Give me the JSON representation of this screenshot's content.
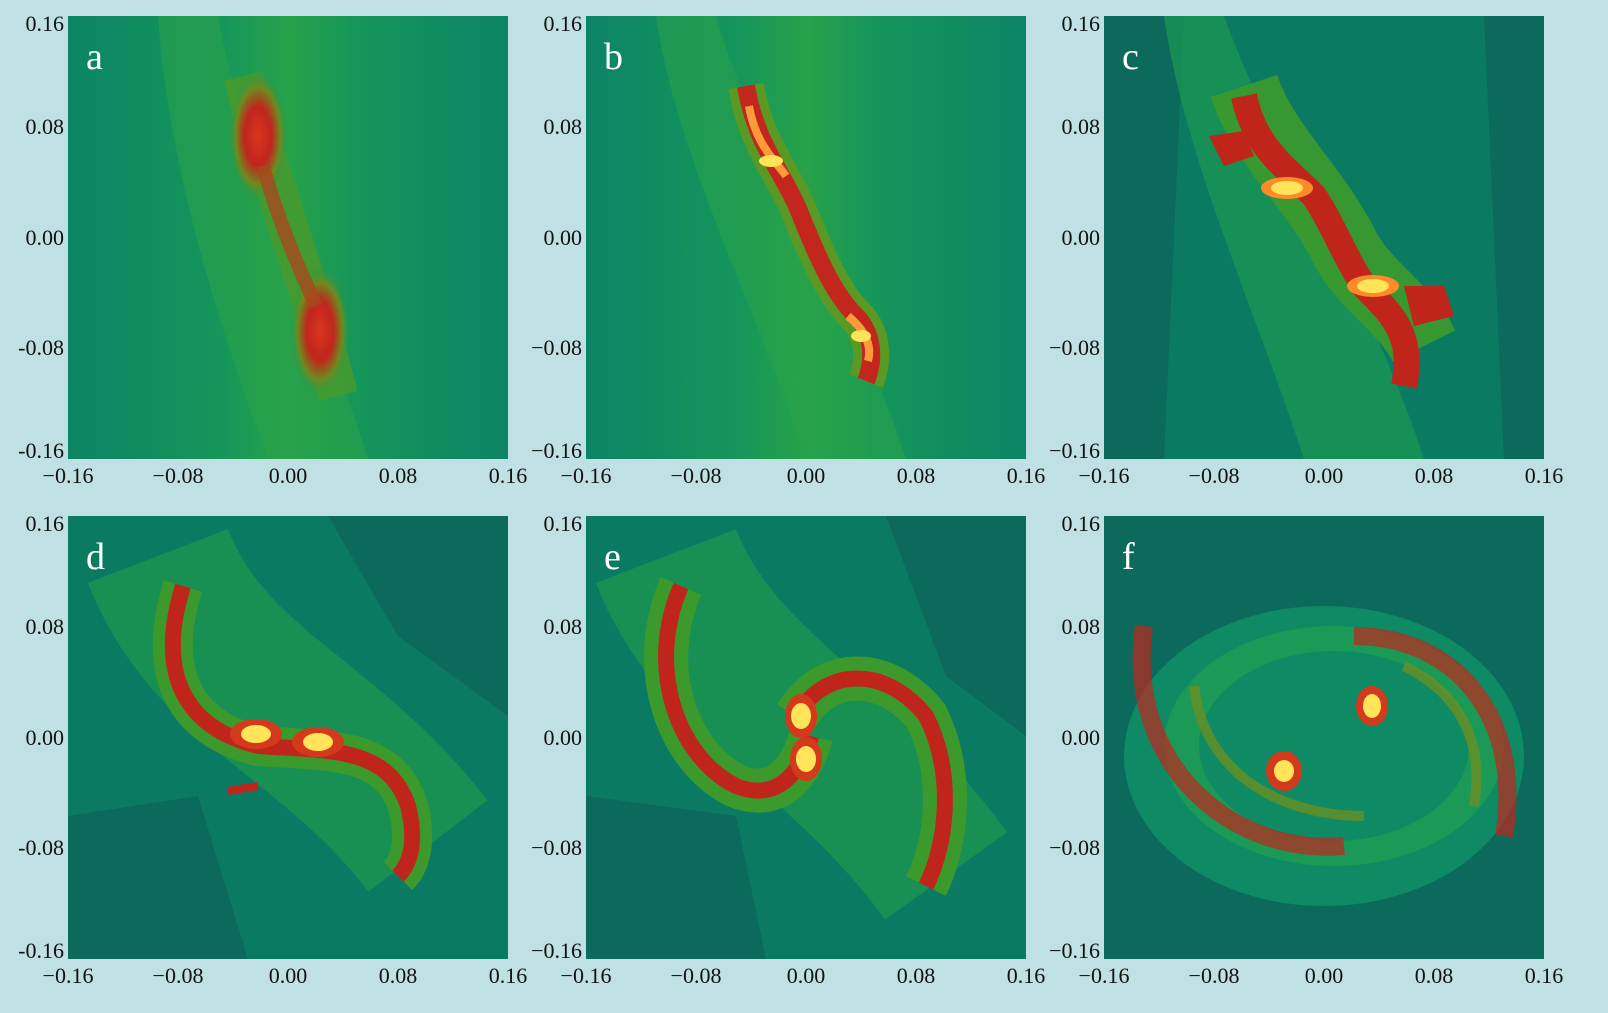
{
  "figure": {
    "axis_ticks": [
      "−0.16",
      "−0.08",
      "0.00",
      "0.08",
      "0.16"
    ],
    "y_ticks_top_to_bottom": [
      "0.16",
      "0.08",
      "0.00",
      "-0.08",
      "-0.16"
    ],
    "y_ticks_top_to_bottom_alt": [
      "0.16",
      "0.08",
      "0.00",
      "−0.08",
      "−0.16"
    ],
    "panels": [
      {
        "label": "a",
        "stage": "elongated bar with two clumps"
      },
      {
        "label": "b",
        "stage": "single thin S-shaped filament"
      },
      {
        "label": "c",
        "stage": "fragmented filament with two cores"
      },
      {
        "label": "d",
        "stage": "two cores with curved spiral arms"
      },
      {
        "label": "e",
        "stage": "two adjacent cores with spiral arms"
      },
      {
        "label": "f",
        "stage": "separated cores within ring-like spiral"
      }
    ],
    "colors": {
      "background": "#bfe0e4",
      "field_dark": "#0b6a5c",
      "field_mid": "#0d8a64",
      "field_light": "#2ca04a",
      "arm_red": "#c0251c",
      "core_yellow": "#ffe45a"
    }
  }
}
